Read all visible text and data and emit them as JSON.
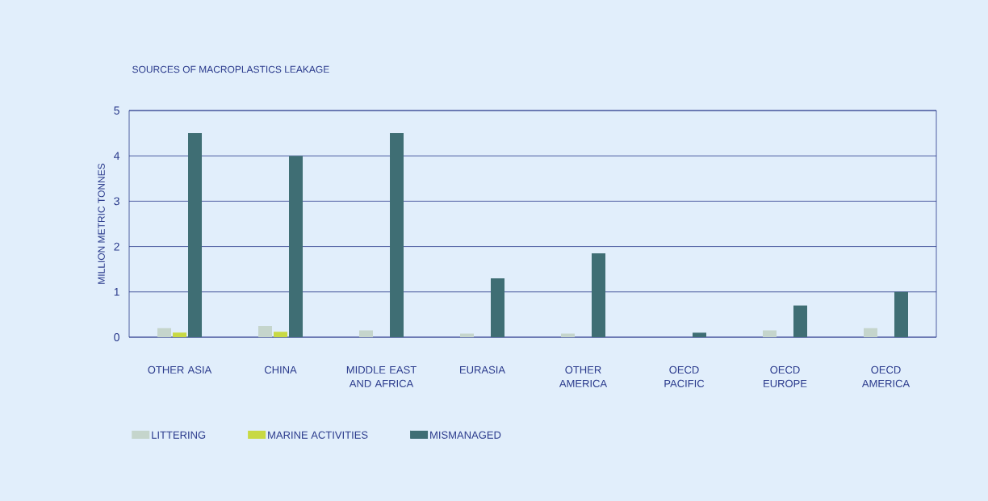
{
  "chart_data": {
    "type": "bar",
    "title": "SOURCES OF MACROPLASTICS LEAKAGE",
    "ylabel": "MILLION METRIC TONNES",
    "categories": [
      "OTHER ASIA",
      "CHINA",
      "MIDDLE EAST AND AFRICA",
      "EURASIA",
      "OTHER AMERICA",
      "OECD PACIFIC",
      "OECD EUROPE",
      "OECD AMERICA"
    ],
    "series": [
      {
        "name": "LITTERING",
        "color": "#c5d5cc",
        "values": [
          0.2,
          0.25,
          0.15,
          0.08,
          0.08,
          0,
          0.15,
          0.2
        ]
      },
      {
        "name": "MARINE ACTIVITIES",
        "color": "#c8d944",
        "values": [
          0.1,
          0.12,
          0,
          0,
          0,
          0,
          0,
          0
        ]
      },
      {
        "name": "MISMANAGED",
        "color": "#3f6e74",
        "values": [
          4.5,
          4.0,
          4.5,
          1.3,
          1.85,
          0.1,
          0.7,
          1.0
        ]
      }
    ],
    "ylim": [
      0,
      5
    ],
    "yticks": [
      0,
      1,
      2,
      3,
      4,
      5
    ],
    "grid": "y",
    "legend": "bottom left"
  }
}
